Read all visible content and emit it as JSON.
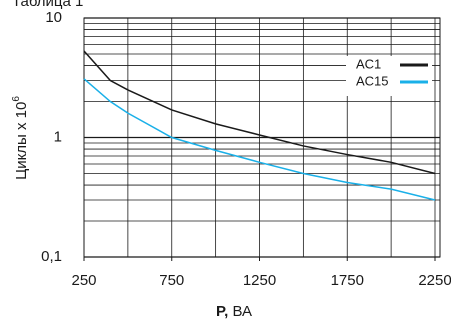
{
  "chart_data": {
    "type": "line",
    "title": "Таблица 1",
    "x": [
      250,
      400,
      500,
      750,
      1000,
      1250,
      1500,
      1750,
      2000,
      2250
    ],
    "series": [
      {
        "name": "AC1",
        "color": "#1a1a1a",
        "values": [
          5.3,
          3.0,
          2.5,
          1.7,
          1.3,
          1.05,
          0.85,
          0.72,
          0.62,
          0.5
        ]
      },
      {
        "name": "AC15",
        "color": "#1ab0e8",
        "values": [
          3.1,
          2.0,
          1.6,
          1.0,
          0.78,
          0.62,
          0.5,
          0.42,
          0.37,
          0.3
        ]
      }
    ],
    "xlim": [
      250,
      2250
    ],
    "xticks": [
      250,
      750,
      1250,
      1750,
      2250
    ],
    "xgrid": [
      250,
      500,
      750,
      1000,
      1250,
      1500,
      1750,
      2000,
      2250
    ],
    "ylim": [
      0.1,
      10
    ],
    "yticks": [
      10,
      1,
      {
        "value": 0.1,
        "label": "0,1"
      }
    ],
    "ylog": true,
    "grid": true,
    "legend": "upper right",
    "xlabel": [
      "P,",
      "ВА"
    ],
    "ylabel": [
      "Циклы x 10",
      "6"
    ]
  }
}
